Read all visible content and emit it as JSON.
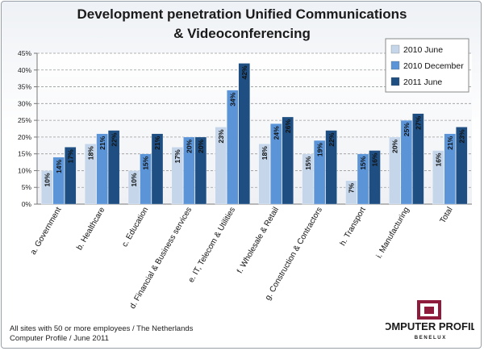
{
  "chart_data": {
    "type": "bar",
    "title_line1": "Development penetration Unified Communications",
    "title_line2": "& Videoconferencing",
    "categories": [
      "a. Government",
      "b. Healthcare",
      "c. Education",
      "d. Financial & Business services",
      "e. IT, Telecom & Utilities",
      "f. Wholesale & Retail",
      "g. Construction & Contractors",
      "h. Transport",
      "i. Manufacturing",
      "Total"
    ],
    "series": [
      {
        "name": "2010 June",
        "color": "#c5d6ea",
        "values": [
          10,
          18,
          10,
          17,
          23,
          18,
          15,
          7,
          20,
          16
        ]
      },
      {
        "name": "2010 December",
        "color": "#5b95d8",
        "values": [
          14,
          21,
          15,
          20,
          34,
          24,
          19,
          15,
          25,
          21
        ]
      },
      {
        "name": "2011 June",
        "color": "#1f4f82",
        "values": [
          17,
          22,
          21,
          20,
          42,
          26,
          22,
          16,
          27,
          23
        ]
      }
    ],
    "ylim": [
      0,
      45
    ],
    "yticks": [
      "0%",
      "5%",
      "10%",
      "15%",
      "20%",
      "25%",
      "30%",
      "35%",
      "40%",
      "45%"
    ],
    "value_suffix": "%",
    "grid": true,
    "legend_position": "top-right"
  },
  "footnote": {
    "line1": "All sites with 50 or more employees / The Netherlands",
    "line2": "Computer Profile / June 2011"
  },
  "logo": {
    "name": "COMPUTER PROFILE",
    "sub": "B E N E L U X",
    "color_maroon": "#8e1b3c",
    "color_text": "#1a1a1a"
  }
}
